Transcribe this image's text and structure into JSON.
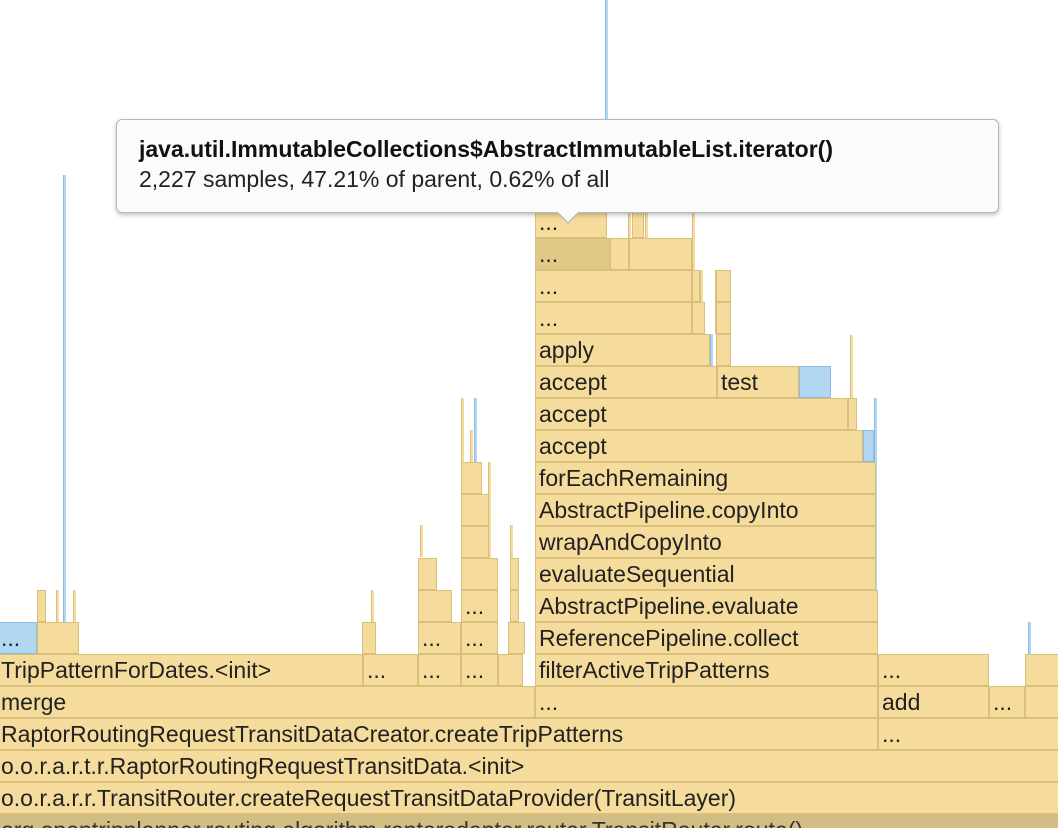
{
  "tooltip": {
    "title": "java.util.ImmutableCollections$AbstractImmutableList.iterator()",
    "stats": "2,227 samples, 47.21% of parent, 0.62% of all"
  },
  "frames": {
    "bottom_route": "org.opentripplanner.routing.algorithm.raptoradapter.router.TransitRouter.route()",
    "provider": "o.o.r.a.r.r.TransitRouter.createRequestTransitDataProvider(TransitLayer)",
    "transit_data_init": "o.o.r.a.r.t.r.RaptorRoutingRequestTransitData.<init>",
    "create_trip_patterns": "RaptorRoutingRequestTransitDataCreator.createTripPatterns",
    "create_trip_patterns_child": "...",
    "merge": "merge",
    "merge_child_ellipsis": "...",
    "add": "add",
    "add_sibling_ellipsis": "...",
    "trip_pattern_init": "TripPatternForDates.<init>",
    "trip_pattern_sibling_1": "...",
    "trip_pattern_sibling_2": "...",
    "trip_pattern_sibling_3": "...",
    "filter_active": "filterActiveTripPatterns",
    "filter_sibling": "...",
    "collect": "ReferencePipeline.collect",
    "collect_sibling_1": "...",
    "collect_sibling_2": "...",
    "left_blue": "...",
    "evaluate": "AbstractPipeline.evaluate",
    "evaluate_sibling": "...",
    "evaluate_sequential": "evaluateSequential",
    "wrap_and_copy": "wrapAndCopyInto",
    "copy_into": "AbstractPipeline.copyInto",
    "for_each_remaining": "forEachRemaining",
    "accept_1": "accept",
    "accept_2": "accept",
    "accept_3": "accept",
    "test": "test",
    "apply": "apply",
    "frame_e1": "...",
    "frame_e2": "...",
    "frame_e3": "...",
    "frame_e4": "..."
  },
  "colors": {
    "frame_fill": "#f5dc9c",
    "frame_highlight": "#e0c887",
    "frame_blue": "#b2d7f3",
    "tooltip_bg": "#fbfbfb"
  }
}
